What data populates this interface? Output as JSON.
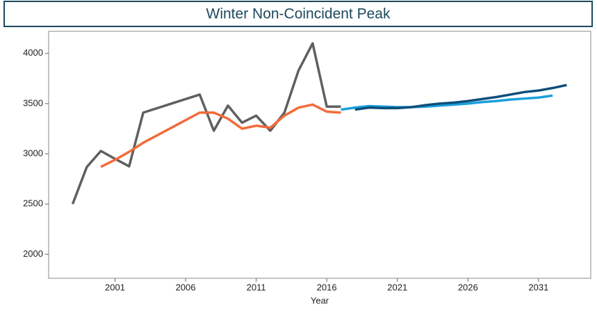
{
  "chart_data": {
    "type": "line",
    "title": "Winter Non-Coincident Peak",
    "xlabel": "Year",
    "xlim": [
      1996.3,
      2034.7
    ],
    "xticks": [
      2001,
      2006,
      2011,
      2016,
      2021,
      2026,
      2031
    ],
    "ylim": [
      1760,
      4220
    ],
    "yticks": [
      2000,
      2500,
      3000,
      3500,
      4000
    ],
    "grid": false,
    "series": [
      {
        "color": "#5f5f5f",
        "x": [
          1998,
          1999,
          2000,
          2001,
          2002,
          2003,
          2007,
          2008,
          2009,
          2010,
          2011,
          2012,
          2013,
          2014,
          2015,
          2016,
          2017
        ],
        "values": [
          2500,
          2868,
          3028,
          2950,
          2875,
          3410,
          3590,
          3230,
          3480,
          3310,
          3380,
          3230,
          3410,
          3830,
          4100,
          3470,
          3470
        ]
      },
      {
        "color": "#f26b3a",
        "x": [
          2000,
          2001,
          2002,
          2003,
          2007,
          2008,
          2009,
          2010,
          2011,
          2012,
          2013,
          2014,
          2015,
          2016,
          2017
        ],
        "values": [
          2870,
          2940,
          3020,
          3110,
          3410,
          3410,
          3350,
          3250,
          3280,
          3260,
          3380,
          3460,
          3490,
          3420,
          3410
        ]
      },
      {
        "color": "#1aa0dc",
        "x": [
          2017,
          2018,
          2019,
          2020,
          2021,
          2022,
          2023,
          2024,
          2025,
          2026,
          2027,
          2028,
          2029,
          2030,
          2031,
          2032
        ],
        "values": [
          3440,
          3460,
          3475,
          3470,
          3465,
          3465,
          3470,
          3480,
          3490,
          3500,
          3515,
          3525,
          3540,
          3550,
          3560,
          3580
        ]
      },
      {
        "color": "#0d4f7a",
        "x": [
          2018,
          2019,
          2020,
          2021,
          2022,
          2023,
          2024,
          2025,
          2026,
          2027,
          2028,
          2029,
          2030,
          2031,
          2032,
          2033
        ],
        "values": [
          3440,
          3460,
          3455,
          3455,
          3465,
          3485,
          3500,
          3510,
          3525,
          3545,
          3565,
          3590,
          3615,
          3630,
          3655,
          3685
        ]
      }
    ]
  }
}
